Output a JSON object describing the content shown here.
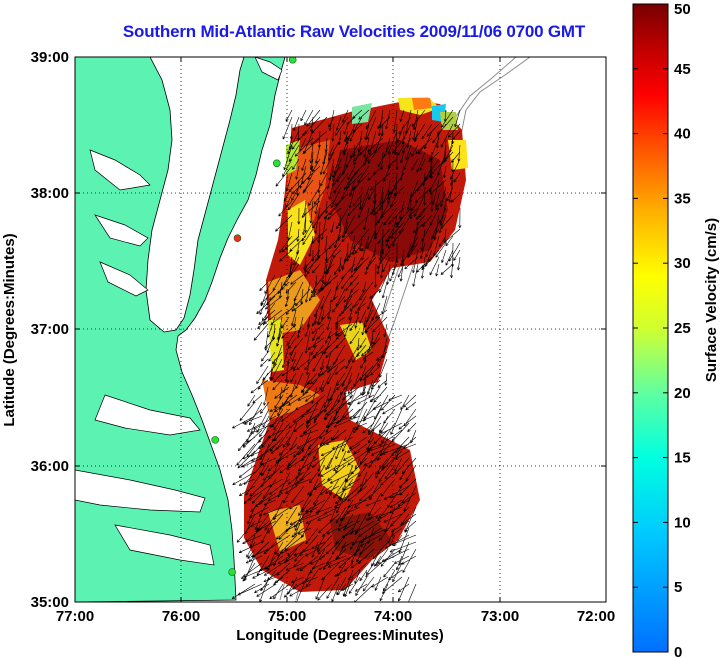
{
  "title": "Southern Mid-Atlantic Raw Velocities 2009/11/06 0700 GMT",
  "axes": {
    "xlabel": "Longitude (Degrees:Minutes)",
    "ylabel": "Latitude (Degrees:Minutes)",
    "xticks": [
      "77:00",
      "76:00",
      "75:00",
      "74:00",
      "73:00",
      "72:00"
    ],
    "yticks": [
      "39:00",
      "38:00",
      "37:00",
      "36:00",
      "35:00"
    ],
    "grid": "dotted"
  },
  "colorbar": {
    "label": "Surface Velocity (cm/s)",
    "ticks": [
      "0",
      "5",
      "10",
      "15",
      "20",
      "25",
      "30",
      "35",
      "40",
      "45",
      "50"
    ],
    "range": [
      0,
      50
    ],
    "colormap": "jet"
  },
  "colors": {
    "land": "#5cf2b2",
    "title": "#1a1ae6",
    "station": "#2adf3a",
    "station_alert": "#e8311d",
    "coastline": "#000000",
    "bathymetry": "#8c8c8c"
  },
  "stations": [
    {
      "status": "ok",
      "lon": -74.95,
      "lat": 38.98
    },
    {
      "status": "ok",
      "lon": -75.1,
      "lat": 38.22
    },
    {
      "status": "alert",
      "lon": -75.47,
      "lat": 37.67
    },
    {
      "status": "ok",
      "lon": -75.68,
      "lat": 36.19
    },
    {
      "status": "ok",
      "lon": -75.52,
      "lat": 35.22
    }
  ]
}
